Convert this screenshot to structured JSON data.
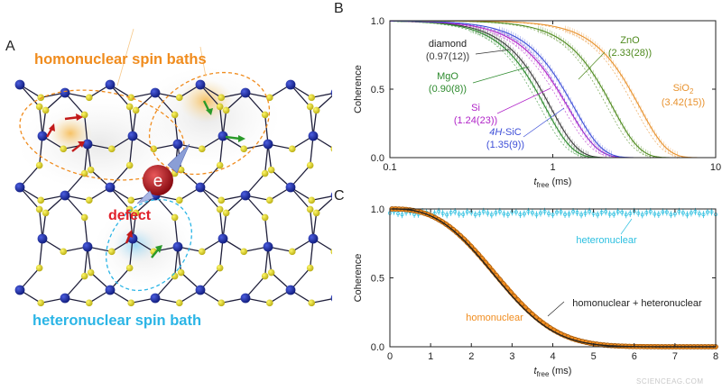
{
  "panel_a": {
    "label": "A",
    "homonuclear_title": "homonuclear spin baths",
    "heteronuclear_title": "heteronuclear spin bath",
    "defect_label": "defect",
    "electron_label": "e",
    "colors": {
      "homonuclear": "#f08c1e",
      "heteronuclear": "#2bb5e6",
      "defect": "#e0202a",
      "node_blue": "#1a2a9a",
      "node_yellow": "#e8e01e"
    }
  },
  "watermark": "SCIENCEAG.COM",
  "chart_data": [
    {
      "panel": "B",
      "type": "line",
      "ylabel": "Coherence",
      "xlabel_main": "t",
      "xlabel_sub": "free",
      "xlabel_unit": " (ms)",
      "x_scale": "log",
      "xlim": [
        0.1,
        10
      ],
      "ylim": [
        0,
        1
      ],
      "x_ticks": [
        0.1,
        1,
        10
      ],
      "x_tick_labels": [
        "0.1",
        "1",
        "10"
      ],
      "y_ticks": [
        0,
        0.5,
        1
      ],
      "y_tick_labels": [
        "0.0",
        "0.5",
        "1.0"
      ],
      "grid": false,
      "series": [
        {
          "name": "diamond",
          "value_label": "(0.97(12))",
          "color": "#3a3a3a",
          "T2": 0.97,
          "n": 2.6
        },
        {
          "name": "MgO",
          "value_label": "(0.90(8))",
          "color": "#2e8b2e",
          "T2": 0.9,
          "n": 2.6
        },
        {
          "name": "Si",
          "value_label": "(1.24(23))",
          "color": "#b024c8",
          "T2": 1.24,
          "n": 2.4
        },
        {
          "name": "4H-SiC",
          "name_italic": "4H",
          "name_rest": "-SiC",
          "value_label": "(1.35(9))",
          "color": "#3e4fd8",
          "T2": 1.35,
          "n": 2.5
        },
        {
          "name": "ZnO",
          "value_label": "(2.33(28))",
          "color": "#4f8a1e",
          "T2": 2.33,
          "n": 2.6
        },
        {
          "name": "SiO2",
          "name_main": "SiO",
          "name_sub": "2",
          "value_label": "(3.42(15))",
          "color": "#e8922e",
          "T2": 3.42,
          "n": 2.6
        }
      ]
    },
    {
      "panel": "C",
      "type": "line",
      "ylabel": "Coherence",
      "xlabel_main": "t",
      "xlabel_sub": "free",
      "xlabel_unit": " (ms)",
      "xlim": [
        0,
        8
      ],
      "ylim": [
        0,
        1
      ],
      "x_ticks": [
        0,
        1,
        2,
        3,
        4,
        5,
        6,
        7,
        8
      ],
      "x_tick_labels": [
        "0",
        "1",
        "2",
        "3",
        "4",
        "5",
        "6",
        "7",
        "8"
      ],
      "y_ticks": [
        0,
        0.5,
        1
      ],
      "y_tick_labels": [
        "0.0",
        "0.5",
        "1.0"
      ],
      "grid": false,
      "series": [
        {
          "name": "heteronuclear",
          "color": "#2bbfe0",
          "level": 0.97
        },
        {
          "name": "homonuclear",
          "color": "#f08c1e",
          "T2": 3.05,
          "n": 2.7
        },
        {
          "name": "homonuclear + heteronuclear",
          "color": "#222222",
          "T2": 3.0,
          "n": 2.7
        }
      ]
    }
  ]
}
